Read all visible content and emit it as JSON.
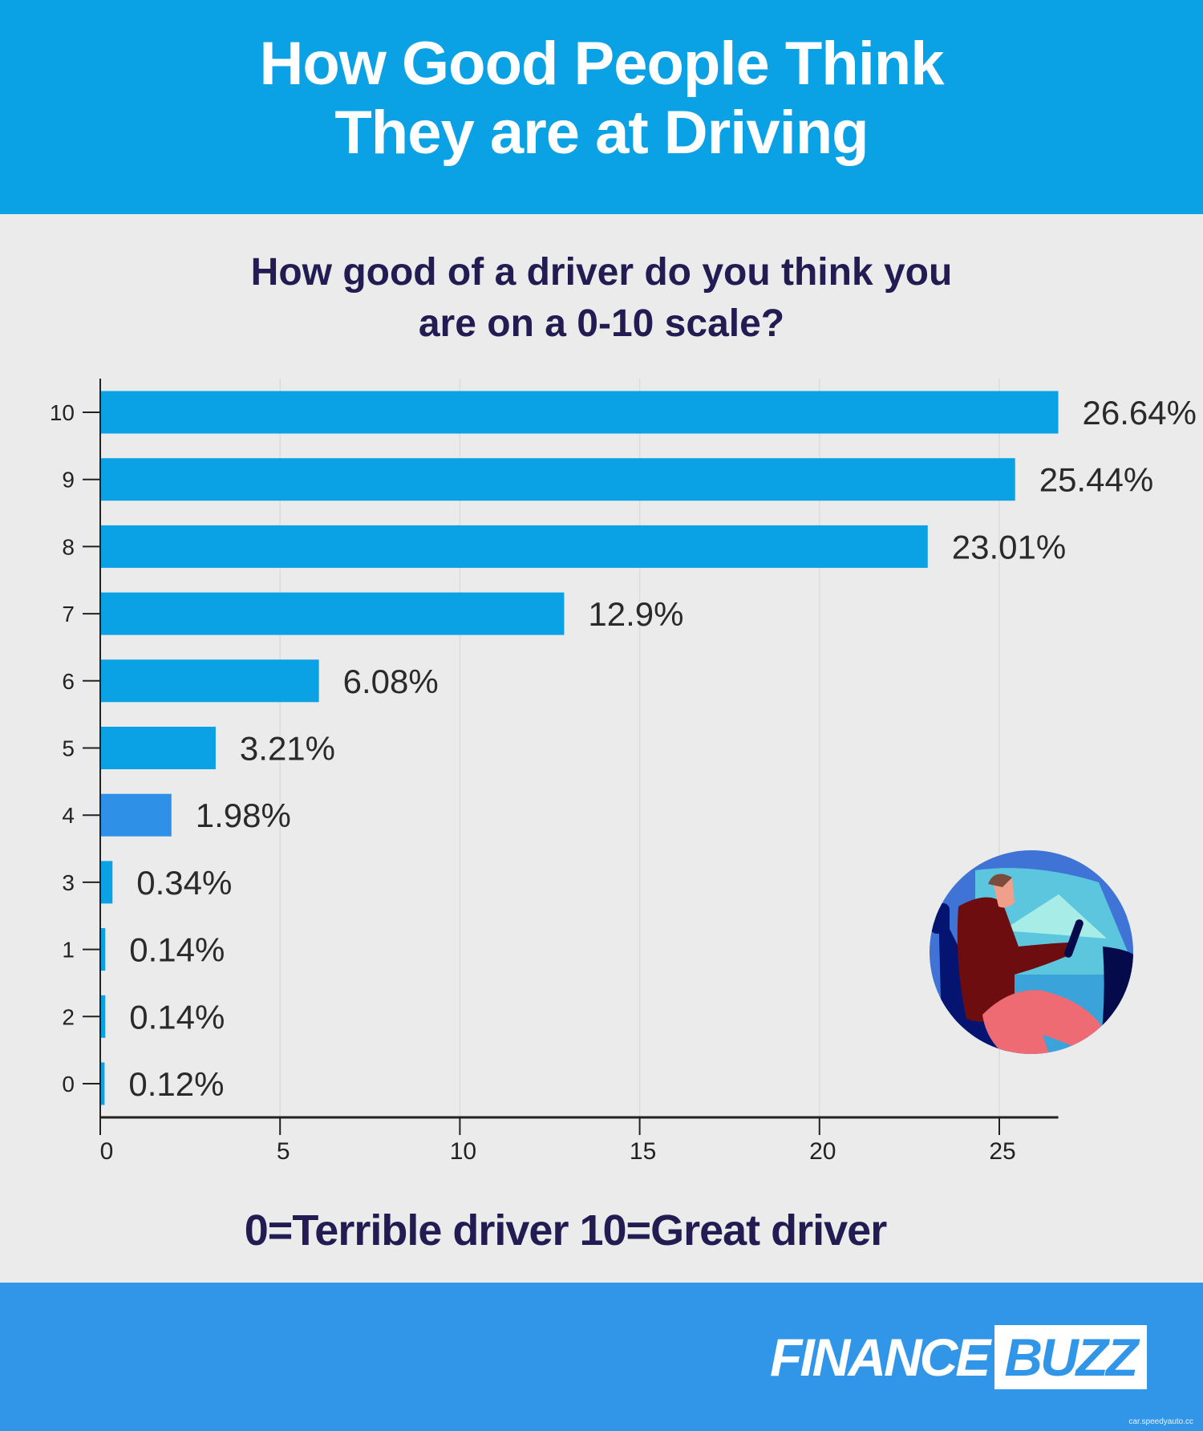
{
  "title_lines": [
    "How Good People Think",
    "They are at Driving"
  ],
  "subtitle_lines": [
    "How good of a driver do you think you",
    "are on a 0-10 scale?"
  ],
  "caption": "0=Terrible driver 10=Great driver",
  "logo": {
    "part1": "FINANCE",
    "part2": "BUZZ"
  },
  "watermark": "car.speedyauto.cc",
  "colors": {
    "header": "#0ba1e5",
    "bar": "#0ba1e5",
    "bar_alt": "#2f90e8",
    "text_dark": "#221c52",
    "footer": "#3196e8"
  },
  "illustration": "man-driving-car-icon",
  "chart_data": {
    "type": "bar",
    "orientation": "horizontal",
    "categories": [
      "10",
      "9",
      "8",
      "7",
      "6",
      "5",
      "4",
      "3",
      "1",
      "2",
      "0"
    ],
    "values": [
      26.64,
      25.44,
      23.01,
      12.9,
      6.08,
      3.21,
      1.98,
      0.34,
      0.14,
      0.14,
      0.12
    ],
    "labels": [
      "26.64%",
      "25.44%",
      "23.01%",
      "12.9%",
      "6.08%",
      "3.21%",
      "1.98%",
      "0.34%",
      "0.14%",
      "0.14%",
      "0.12%"
    ],
    "xticks": [
      0,
      5,
      10,
      15,
      20,
      25
    ],
    "xlim": [
      0,
      26.64
    ],
    "grid": true,
    "xlabel": "",
    "ylabel": ""
  }
}
